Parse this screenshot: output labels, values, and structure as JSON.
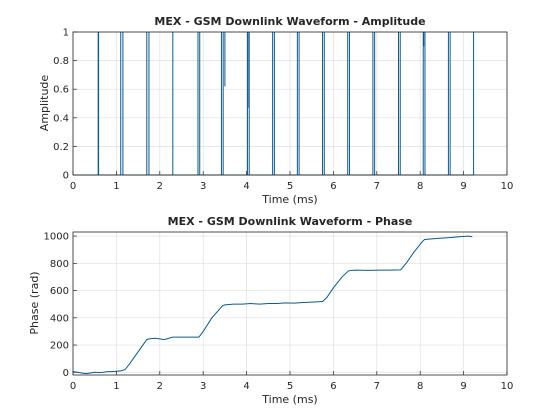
{
  "colors": {
    "line": "#0e5a8a",
    "grid": "#dfdfdf",
    "axis": "#262626",
    "background": "#ffffff"
  },
  "chart_data": [
    {
      "type": "line",
      "title": "MEX - GSM Downlink Waveform - Amplitude",
      "xlabel": "Time (ms)",
      "ylabel": "Amplitude",
      "xlim": [
        0,
        10
      ],
      "ylim": [
        0,
        1
      ],
      "xticks": [
        "0",
        "1",
        "2",
        "3",
        "4",
        "5",
        "6",
        "7",
        "8",
        "9",
        "10"
      ],
      "yticks": [
        "0",
        "0.2",
        "0.4",
        "0.6",
        "0.8",
        "1"
      ],
      "grid": true,
      "signal": {
        "start": 0.0,
        "end": 9.24,
        "base_level": 0.0,
        "spike_level": 1.0,
        "spike_times": [
          0.58,
          0.59,
          1.1,
          1.15,
          1.7,
          1.75,
          2.3,
          2.88,
          2.92,
          3.42,
          3.46,
          4.02,
          4.06,
          4.6,
          4.64,
          5.17,
          5.21,
          5.75,
          5.79,
          6.33,
          6.37,
          6.91,
          6.95,
          7.5,
          7.54,
          8.07,
          8.11,
          8.65,
          8.69,
          9.23
        ],
        "dips": [
          {
            "x": 3.5,
            "y": 0.62
          },
          {
            "x": 4.05,
            "y": 0.47
          },
          {
            "x": 8.08,
            "y": 0.9
          }
        ]
      }
    },
    {
      "type": "line",
      "title": "MEX - GSM Downlink Waveform - Phase",
      "xlabel": "Time (ms)",
      "ylabel": "Phase (rad)",
      "xlim": [
        0,
        10
      ],
      "ylim": [
        -20,
        1030
      ],
      "xticks": [
        "0",
        "1",
        "2",
        "3",
        "4",
        "5",
        "6",
        "7",
        "8",
        "9",
        "10"
      ],
      "yticks": [
        "0",
        "200",
        "400",
        "600",
        "800",
        "1000"
      ],
      "grid": true,
      "x": [
        0.0,
        0.1,
        0.2,
        0.3,
        0.4,
        0.5,
        0.6,
        0.7,
        0.8,
        0.9,
        1.0,
        1.1,
        1.2,
        1.3,
        1.5,
        1.7,
        1.75,
        1.9,
        2.0,
        2.1,
        2.3,
        2.5,
        2.7,
        2.9,
        3.0,
        3.2,
        3.45,
        3.5,
        3.7,
        3.9,
        4.1,
        4.3,
        4.5,
        4.7,
        4.9,
        5.1,
        5.3,
        5.5,
        5.75,
        5.85,
        6.0,
        6.2,
        6.35,
        6.5,
        6.8,
        7.1,
        7.3,
        7.55,
        7.7,
        7.85,
        8.05,
        8.1,
        8.3,
        8.5,
        8.7,
        8.9,
        9.1,
        9.2
      ],
      "y": [
        5,
        0,
        -5,
        -10,
        -5,
        0,
        -3,
        0,
        5,
        5,
        8,
        10,
        20,
        60,
        150,
        240,
        245,
        250,
        245,
        240,
        258,
        258,
        258,
        258,
        300,
        400,
        490,
        495,
        500,
        500,
        505,
        500,
        505,
        505,
        510,
        508,
        512,
        515,
        520,
        550,
        620,
        700,
        745,
        750,
        748,
        750,
        750,
        752,
        810,
        880,
        960,
        975,
        980,
        985,
        990,
        995,
        1000,
        995
      ]
    }
  ]
}
